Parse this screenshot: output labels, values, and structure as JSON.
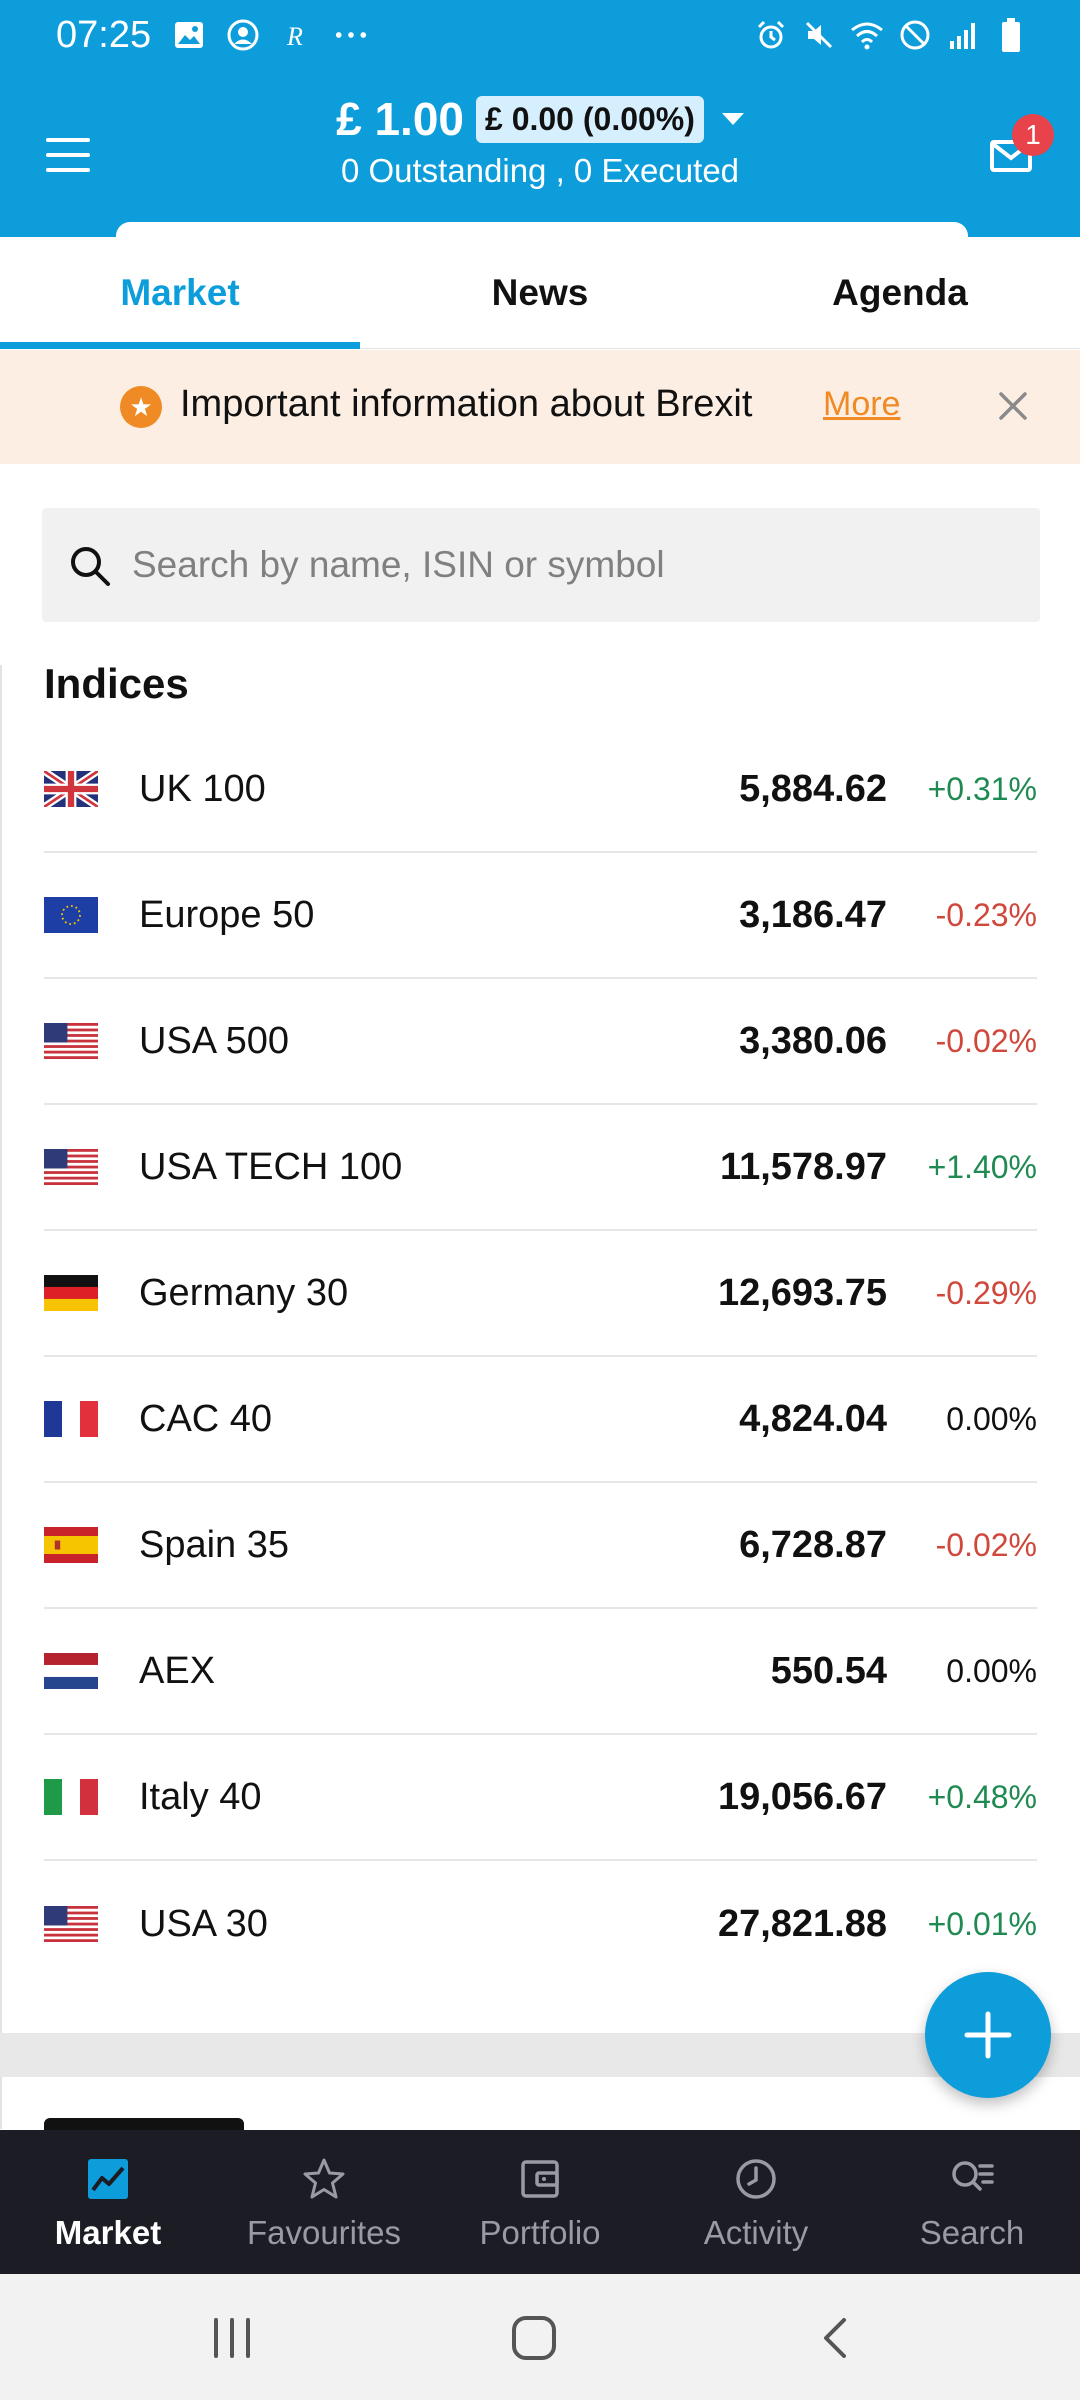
{
  "status_bar": {
    "time": "07:25",
    "left_icons": [
      "gallery-icon",
      "account-icon",
      "r-app-icon",
      "more-dots-icon"
    ],
    "right_icons": [
      "alarm-icon",
      "mute-icon",
      "wifi-icon",
      "no-sim-icon",
      "signal-icon",
      "battery-icon"
    ]
  },
  "header": {
    "balance": "£ 1.00",
    "pl_pill": "£ 0.00 (0.00%)",
    "orders_summary": "0 Outstanding , 0 Executed",
    "notification_count": "1"
  },
  "tabs": [
    {
      "label": "Market",
      "active": true
    },
    {
      "label": "News",
      "active": false
    },
    {
      "label": "Agenda",
      "active": false
    }
  ],
  "banner": {
    "text": "Important information about Brexit",
    "more_label": "More"
  },
  "search": {
    "placeholder": "Search by name, ISIN or symbol"
  },
  "indices": {
    "title": "Indices",
    "rows": [
      {
        "flag": "uk",
        "name": "UK 100",
        "price": "5,884.62",
        "change": "+0.31%",
        "direction": "up"
      },
      {
        "flag": "eu",
        "name": "Europe 50",
        "price": "3,186.47",
        "change": "-0.23%",
        "direction": "down"
      },
      {
        "flag": "us",
        "name": "USA 500",
        "price": "3,380.06",
        "change": "-0.02%",
        "direction": "down"
      },
      {
        "flag": "us",
        "name": "USA TECH 100",
        "price": "11,578.97",
        "change": "+1.40%",
        "direction": "up"
      },
      {
        "flag": "de",
        "name": "Germany 30",
        "price": "12,693.75",
        "change": "-0.29%",
        "direction": "down"
      },
      {
        "flag": "fr",
        "name": "CAC 40",
        "price": "4,824.04",
        "change": "0.00%",
        "direction": "flat"
      },
      {
        "flag": "es",
        "name": "Spain 35",
        "price": "6,728.87",
        "change": "-0.02%",
        "direction": "down"
      },
      {
        "flag": "nl",
        "name": "AEX",
        "price": "550.54",
        "change": "0.00%",
        "direction": "flat"
      },
      {
        "flag": "it",
        "name": "Italy 40",
        "price": "19,056.67",
        "change": "+0.48%",
        "direction": "up"
      },
      {
        "flag": "us",
        "name": "USA 30",
        "price": "27,821.88",
        "change": "+0.01%",
        "direction": "up"
      }
    ]
  },
  "bottom_nav": [
    {
      "label": "Market",
      "icon": "market-chart-icon",
      "active": true
    },
    {
      "label": "Favourites",
      "icon": "star-icon",
      "active": false
    },
    {
      "label": "Portfolio",
      "icon": "wallet-icon",
      "active": false
    },
    {
      "label": "Activity",
      "icon": "clock-icon",
      "active": false
    },
    {
      "label": "Search",
      "icon": "search-list-icon",
      "active": false
    }
  ],
  "colors": {
    "brand_blue": "#0d9ddb",
    "positive": "#1f8a52",
    "negative": "#d0473c",
    "banner_bg": "#fdeee3",
    "accent_orange": "#f08a24",
    "nav_bg": "#1c1c24"
  }
}
